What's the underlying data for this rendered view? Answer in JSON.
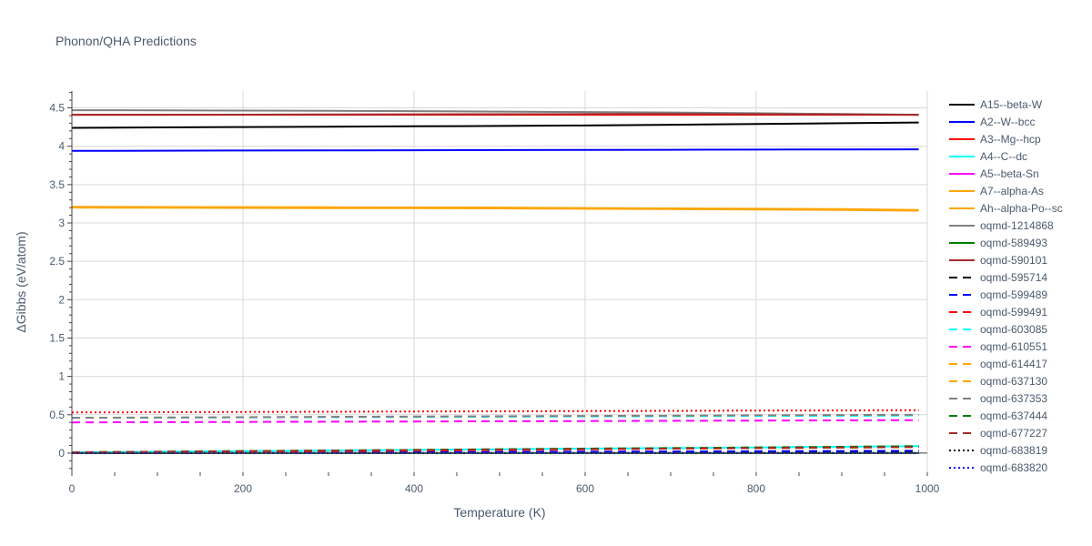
{
  "chart_data": {
    "type": "line",
    "title": "Phonon/QHA Predictions",
    "xlabel": "Temperature (K)",
    "ylabel": "ΔGibbs (eV/atom)",
    "xlim": [
      0,
      1000
    ],
    "ylim": [
      -0.25,
      4.72
    ],
    "x_ticks": [
      0,
      200,
      400,
      600,
      800,
      1000
    ],
    "y_ticks": [
      0,
      0.5,
      1,
      1.5,
      2,
      2.5,
      3,
      3.5,
      4,
      4.5
    ],
    "x_tick_labels": [
      "0",
      "200",
      "400",
      "600",
      "800",
      "1000"
    ],
    "y_tick_labels": [
      "0",
      "0.5",
      "1",
      "1.5",
      "2",
      "2.5",
      "3",
      "3.5",
      "4",
      "4.5"
    ],
    "grid": true,
    "legend_position": "right",
    "x": [
      0,
      100,
      200,
      300,
      400,
      500,
      600,
      700,
      800,
      900,
      990
    ],
    "series": [
      {
        "name": "A15--beta-W",
        "color": "#000000",
        "dash": "solid",
        "values": [
          4.24,
          4.245,
          4.25,
          4.255,
          4.26,
          4.265,
          4.27,
          4.28,
          4.29,
          4.3,
          4.31
        ]
      },
      {
        "name": "A2--W--bcc",
        "color": "#0000ff",
        "dash": "solid",
        "values": [
          3.94,
          3.942,
          3.944,
          3.946,
          3.948,
          3.95,
          3.952,
          3.954,
          3.956,
          3.958,
          3.96
        ]
      },
      {
        "name": "A3--Mg--hcp",
        "color": "#ff0000",
        "dash": "solid",
        "values": [
          4.41,
          4.41,
          4.41,
          4.41,
          4.41,
          4.41,
          4.41,
          4.41,
          4.41,
          4.41,
          4.41
        ]
      },
      {
        "name": "A4--C--dc",
        "color": "#00ffff",
        "dash": "solid",
        "values": [
          0.01,
          0.018,
          0.026,
          0.034,
          0.042,
          0.05,
          0.058,
          0.066,
          0.074,
          0.082,
          0.09
        ]
      },
      {
        "name": "A5--beta-Sn",
        "color": "#ff00ff",
        "dash": "solid",
        "values": [
          0.0,
          0.0,
          0.0,
          0.0,
          0.0,
          0.0,
          0.0,
          0.0,
          0.0,
          0.0,
          0.0
        ]
      },
      {
        "name": "A7--alpha-As",
        "color": "#ffa500",
        "dash": "solid",
        "values": [
          3.21,
          3.208,
          3.206,
          3.204,
          3.202,
          3.2,
          3.195,
          3.19,
          3.185,
          3.18,
          3.17
        ]
      },
      {
        "name": "Ah--alpha-Po--sc",
        "color": "#ffa500",
        "dash": "solid",
        "values": [
          3.2,
          3.198,
          3.196,
          3.194,
          3.192,
          3.19,
          3.185,
          3.18,
          3.175,
          3.17,
          3.16
        ]
      },
      {
        "name": "oqmd-1214868",
        "color": "#808080",
        "dash": "solid",
        "values": [
          4.47,
          4.468,
          4.465,
          4.462,
          4.458,
          4.452,
          4.446,
          4.44,
          4.43,
          4.42,
          4.41
        ]
      },
      {
        "name": "oqmd-589493",
        "color": "#008000",
        "dash": "solid",
        "values": [
          0.0,
          0.0,
          0.0,
          0.0,
          0.0,
          0.0,
          0.0,
          0.0,
          0.0,
          0.0,
          0.0
        ]
      },
      {
        "name": "oqmd-590101",
        "color": "#a52a2a",
        "dash": "solid",
        "values": [
          4.41,
          4.41,
          4.412,
          4.414,
          4.416,
          4.418,
          4.42,
          4.42,
          4.418,
          4.414,
          4.41
        ]
      },
      {
        "name": "oqmd-595714",
        "color": "#000000",
        "dash": "dash",
        "values": [
          0.0,
          0.002,
          0.004,
          0.006,
          0.008,
          0.01,
          0.012,
          0.014,
          0.016,
          0.018,
          0.02
        ]
      },
      {
        "name": "oqmd-599489",
        "color": "#0000ff",
        "dash": "dash",
        "values": [
          0.0,
          0.003,
          0.006,
          0.009,
          0.012,
          0.015,
          0.018,
          0.021,
          0.024,
          0.027,
          0.03
        ]
      },
      {
        "name": "oqmd-599491",
        "color": "#ff0000",
        "dash": "dash",
        "values": [
          0.0,
          0.008,
          0.016,
          0.024,
          0.032,
          0.04,
          0.048,
          0.056,
          0.064,
          0.072,
          0.08
        ]
      },
      {
        "name": "oqmd-603085",
        "color": "#00ffff",
        "dash": "dash",
        "values": [
          0.46,
          0.463,
          0.466,
          0.469,
          0.472,
          0.475,
          0.478,
          0.481,
          0.484,
          0.487,
          0.49
        ]
      },
      {
        "name": "oqmd-610551",
        "color": "#ff00ff",
        "dash": "dash",
        "values": [
          0.4,
          0.403,
          0.406,
          0.409,
          0.412,
          0.415,
          0.418,
          0.421,
          0.424,
          0.427,
          0.43
        ]
      },
      {
        "name": "oqmd-614417",
        "color": "#ffa500",
        "dash": "dash",
        "values": [
          0.01,
          0.017,
          0.024,
          0.031,
          0.038,
          0.045,
          0.052,
          0.059,
          0.066,
          0.073,
          0.08
        ]
      },
      {
        "name": "oqmd-637130",
        "color": "#ffa500",
        "dash": "dash",
        "values": [
          0.01,
          0.018,
          0.026,
          0.034,
          0.042,
          0.05,
          0.058,
          0.066,
          0.074,
          0.082,
          0.09
        ]
      },
      {
        "name": "oqmd-637353",
        "color": "#808080",
        "dash": "dash",
        "values": [
          0.46,
          0.464,
          0.468,
          0.472,
          0.476,
          0.48,
          0.484,
          0.488,
          0.492,
          0.496,
          0.5
        ]
      },
      {
        "name": "oqmd-637444",
        "color": "#008000",
        "dash": "dash",
        "values": [
          0.01,
          0.018,
          0.026,
          0.034,
          0.042,
          0.05,
          0.058,
          0.066,
          0.074,
          0.082,
          0.09
        ]
      },
      {
        "name": "oqmd-677227",
        "color": "#a52a2a",
        "dash": "dash",
        "values": [
          0.01,
          0.017,
          0.024,
          0.031,
          0.038,
          0.045,
          0.052,
          0.059,
          0.066,
          0.073,
          0.08
        ]
      },
      {
        "name": "oqmd-683819",
        "color": "#000000",
        "dash": "dot",
        "values": [
          0.0,
          0.0,
          0.0,
          0.0,
          0.0,
          0.0,
          0.0,
          0.0,
          0.0,
          0.0,
          0.0
        ]
      },
      {
        "name": "oqmd-683820",
        "color": "#0000ff",
        "dash": "dot",
        "values": [
          0.0,
          0.0,
          0.0,
          0.0,
          0.0,
          0.0,
          0.0,
          0.0,
          0.0,
          0.0,
          0.0
        ]
      },
      {
        "name": "",
        "color": "#ff0000",
        "dash": "dot",
        "values": [
          0.53,
          0.533,
          0.536,
          0.539,
          0.542,
          0.545,
          0.548,
          0.551,
          0.554,
          0.557,
          0.56
        ]
      }
    ]
  }
}
